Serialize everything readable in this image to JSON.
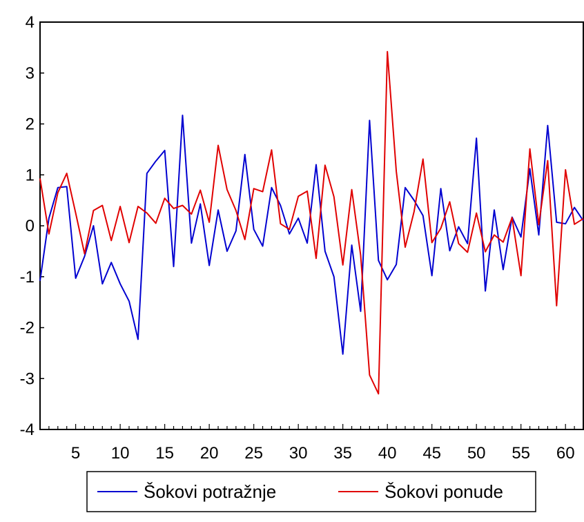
{
  "chart_data": {
    "type": "line",
    "title": "",
    "xlabel": "",
    "ylabel": "",
    "xlim": [
      1,
      62
    ],
    "ylim": [
      -4,
      4
    ],
    "yticks": [
      4,
      3,
      2,
      1,
      0,
      -1,
      -2,
      -3,
      -4
    ],
    "yticklabels": [
      "4",
      "3",
      "2",
      "1",
      "0",
      "-1",
      "-2",
      "-3",
      "-4"
    ],
    "xticks": [
      5,
      10,
      15,
      20,
      25,
      30,
      35,
      40,
      45,
      50,
      55,
      60
    ],
    "xticklabels": [
      "5",
      "10",
      "15",
      "20",
      "25",
      "30",
      "35",
      "40",
      "45",
      "50",
      "55",
      "60"
    ],
    "grid": false,
    "legend_position": "bottom-center",
    "x": [
      1,
      2,
      3,
      4,
      5,
      6,
      7,
      8,
      9,
      10,
      11,
      12,
      13,
      14,
      15,
      16,
      17,
      18,
      19,
      20,
      21,
      22,
      23,
      24,
      25,
      26,
      27,
      28,
      29,
      30,
      31,
      32,
      33,
      34,
      35,
      36,
      37,
      38,
      39,
      40,
      41,
      42,
      43,
      44,
      45,
      46,
      47,
      48,
      49,
      50,
      51,
      52,
      53,
      54,
      55,
      56,
      57,
      58,
      59,
      60,
      61,
      62
    ],
    "series": [
      {
        "name": "Šokovi potražnje",
        "color": "#0000d0",
        "values": [
          -1.08,
          0.15,
          0.75,
          0.77,
          -1.03,
          -0.6,
          0.0,
          -1.14,
          -0.72,
          -1.14,
          -1.48,
          -2.23,
          1.03,
          1.27,
          1.48,
          -0.8,
          2.17,
          -0.34,
          0.43,
          -0.78,
          0.31,
          -0.5,
          -0.1,
          1.4,
          -0.07,
          -0.4,
          0.75,
          0.4,
          -0.16,
          0.15,
          -0.34,
          1.2,
          -0.5,
          -1.0,
          -2.52,
          -0.38,
          -1.68,
          2.07,
          -0.68,
          -1.06,
          -0.76,
          0.75,
          0.5,
          0.2,
          -0.98,
          0.73,
          -0.49,
          -0.02,
          -0.35,
          1.72,
          -1.28,
          0.31,
          -0.86,
          0.17,
          -0.22,
          1.12,
          -0.18,
          1.97,
          0.07,
          0.04,
          0.36,
          0.1
        ]
      },
      {
        "name": "Šokovi ponude",
        "color": "#e00000",
        "values": [
          0.93,
          -0.16,
          0.65,
          1.03,
          0.25,
          -0.55,
          0.3,
          0.4,
          -0.29,
          0.38,
          -0.33,
          0.38,
          0.25,
          0.05,
          0.54,
          0.34,
          0.4,
          0.23,
          0.7,
          0.07,
          1.58,
          0.71,
          0.3,
          -0.27,
          0.73,
          0.67,
          1.49,
          0.04,
          -0.07,
          0.58,
          0.68,
          -0.64,
          1.19,
          0.57,
          -0.77,
          0.71,
          -0.58,
          -2.93,
          -3.3,
          3.42,
          1.07,
          -0.42,
          0.28,
          1.31,
          -0.33,
          -0.05,
          0.47,
          -0.35,
          -0.52,
          0.25,
          -0.51,
          -0.18,
          -0.32,
          0.16,
          -0.98,
          1.51,
          0.02,
          1.28,
          -1.57,
          1.1,
          0.03,
          0.14
        ]
      }
    ]
  }
}
